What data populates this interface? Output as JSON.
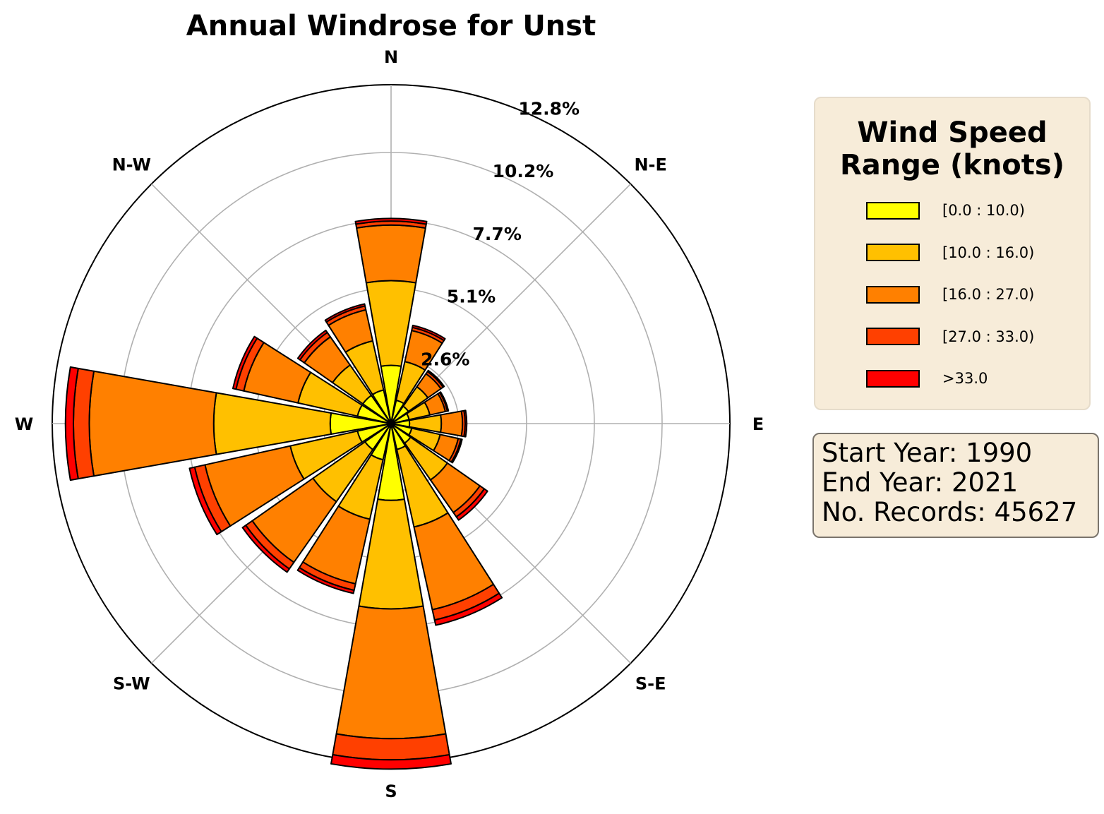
{
  "chart_data": {
    "type": "windrose",
    "title": "Annual Windrose for Unst",
    "direction_labels": [
      "N",
      "N-E",
      "E",
      "S-E",
      "S",
      "S-W",
      "W",
      "N-W"
    ],
    "directions_deg": [
      0,
      22.5,
      45,
      67.5,
      90,
      112.5,
      135,
      157.5,
      180,
      202.5,
      225,
      247.5,
      270,
      292.5,
      315,
      337.5
    ],
    "radial_max_percent": 12.8,
    "ring_labels": [
      "2.6%",
      "5.1%",
      "7.7%",
      "10.2%",
      "12.8%"
    ],
    "ring_values": [
      2.56,
      5.12,
      7.68,
      10.24,
      12.8
    ],
    "grid": true,
    "legend_placement": "right",
    "legend_title": "Wind Speed Range (knots)",
    "series": [
      {
        "name": "[0.0 : 10.0)",
        "color": "#ffff00",
        "values": [
          2.2,
          0.9,
          0.8,
          0.7,
          0.7,
          0.8,
          0.9,
          1.0,
          2.9,
          1.4,
          1.2,
          1.3,
          2.3,
          1.3,
          1.3,
          1.3
        ]
      },
      {
        "name": "[10.0 : 16.0)",
        "color": "#ffc000",
        "values": [
          3.2,
          1.5,
          0.9,
          0.8,
          1.2,
          1.1,
          1.7,
          3.0,
          4.1,
          2.3,
          2.4,
          2.6,
          4.4,
          2.3,
          1.4,
          1.9
        ]
      },
      {
        "name": "[16.0 : 27.0)",
        "color": "#ff8000",
        "values": [
          2.1,
          1.2,
          0.6,
          0.6,
          0.8,
          0.7,
          1.5,
          3.2,
          4.9,
          2.5,
          2.8,
          3.3,
          4.7,
          2.1,
          1.3,
          1.2
        ]
      },
      {
        "name": "[27.0 : 33.0)",
        "color": "#ff4000",
        "values": [
          0.15,
          0.12,
          0.1,
          0.08,
          0.1,
          0.1,
          0.2,
          0.4,
          0.8,
          0.25,
          0.3,
          0.4,
          0.6,
          0.3,
          0.2,
          0.15
        ]
      },
      {
        "name": ">33.0",
        "color": "#ff0000",
        "values": [
          0.1,
          0.08,
          0.05,
          0.04,
          0.06,
          0.05,
          0.15,
          0.2,
          0.35,
          0.12,
          0.15,
          0.2,
          0.3,
          0.12,
          0.1,
          0.08
        ]
      }
    ]
  },
  "info": {
    "start_year": "Start Year: 1990",
    "end_year": "End Year: 2021",
    "records": "No. Records: 45627"
  }
}
